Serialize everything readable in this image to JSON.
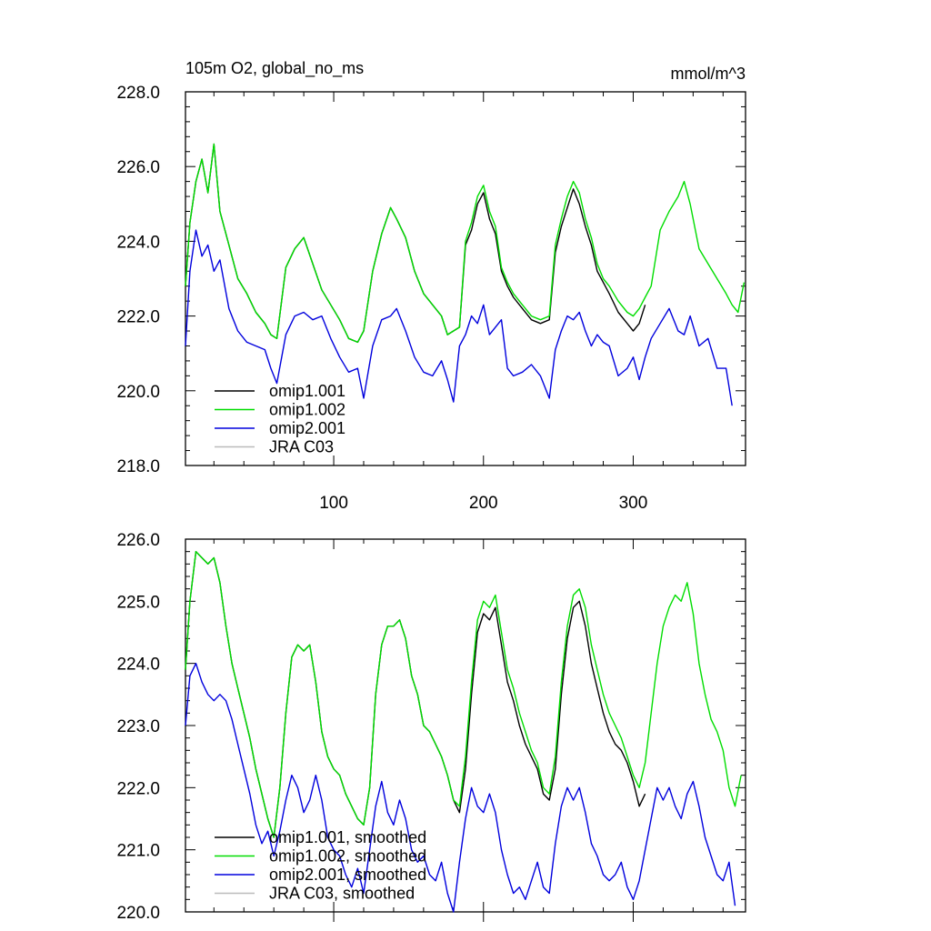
{
  "chart_data": [
    {
      "type": "line",
      "title_left": "105m O2, global_no_ms",
      "title_right": "mmol/m^3",
      "xlim": [
        1,
        375
      ],
      "ylim": [
        218,
        228
      ],
      "xticks": [
        100,
        200,
        300
      ],
      "xtick_labels": [
        "100",
        "200",
        "300"
      ],
      "yticks": [
        218,
        220,
        222,
        224,
        226,
        228
      ],
      "ytick_labels": [
        "218.0",
        "220.0",
        "222.0",
        "224.0",
        "226.0",
        "228.0"
      ],
      "grid": false,
      "legend_position": "bottom-left",
      "series": [
        {
          "name": "omip1.001",
          "color": "#000000",
          "x": [
            1,
            4,
            8,
            12,
            16,
            20,
            24,
            30,
            36,
            42,
            48,
            54,
            58,
            62,
            68,
            74,
            80,
            86,
            92,
            98,
            104,
            110,
            116,
            120,
            126,
            132,
            138,
            142,
            148,
            154,
            160,
            166,
            172,
            176,
            180,
            184,
            188,
            192,
            196,
            200,
            204,
            208,
            212,
            216,
            220,
            226,
            232,
            238,
            244,
            248,
            252,
            256,
            260,
            264,
            268,
            272,
            276,
            280,
            284,
            290,
            296,
            300,
            304,
            308
          ],
          "values": [
            222.8,
            224.5,
            225.6,
            226.2,
            225.3,
            226.6,
            224.8,
            223.9,
            223.0,
            222.6,
            222.1,
            221.8,
            221.5,
            221.4,
            223.3,
            223.8,
            224.1,
            223.4,
            222.7,
            222.3,
            221.9,
            221.4,
            221.3,
            221.6,
            223.2,
            224.2,
            224.9,
            224.6,
            224.1,
            223.2,
            222.6,
            222.3,
            222.0,
            221.5,
            221.6,
            221.7,
            223.9,
            224.3,
            225.0,
            225.3,
            224.6,
            224.2,
            223.2,
            222.8,
            222.5,
            222.2,
            221.9,
            221.8,
            221.9,
            223.7,
            224.4,
            224.9,
            225.4,
            225.0,
            224.4,
            223.9,
            223.2,
            222.9,
            222.6,
            222.1,
            221.8,
            221.6,
            221.8,
            222.3
          ]
        },
        {
          "name": "omip1.002",
          "color": "#00dd00",
          "x": [
            1,
            4,
            8,
            12,
            16,
            20,
            24,
            30,
            36,
            42,
            48,
            54,
            58,
            62,
            68,
            74,
            80,
            86,
            92,
            98,
            104,
            110,
            116,
            120,
            126,
            132,
            138,
            142,
            148,
            154,
            160,
            166,
            172,
            176,
            180,
            184,
            188,
            192,
            196,
            200,
            204,
            208,
            212,
            216,
            220,
            226,
            232,
            238,
            244,
            248,
            252,
            256,
            260,
            264,
            268,
            272,
            276,
            280,
            284,
            290,
            296,
            300,
            304,
            308,
            312,
            318,
            324,
            330,
            334,
            338,
            344,
            350,
            356,
            362,
            366,
            370,
            374
          ],
          "values": [
            222.8,
            224.5,
            225.6,
            226.2,
            225.3,
            226.6,
            224.8,
            223.9,
            223.0,
            222.6,
            222.1,
            221.8,
            221.5,
            221.4,
            223.3,
            223.8,
            224.1,
            223.4,
            222.7,
            222.3,
            221.9,
            221.4,
            221.3,
            221.6,
            223.2,
            224.2,
            224.9,
            224.6,
            224.1,
            223.2,
            222.6,
            222.3,
            222.0,
            221.5,
            221.6,
            221.7,
            224.0,
            224.5,
            225.2,
            225.5,
            224.8,
            224.4,
            223.3,
            222.9,
            222.6,
            222.3,
            222.0,
            221.9,
            222.0,
            223.9,
            224.6,
            225.2,
            225.6,
            225.3,
            224.6,
            224.1,
            223.4,
            223.0,
            222.8,
            222.4,
            222.1,
            222.0,
            222.2,
            222.5,
            222.8,
            224.3,
            224.8,
            225.2,
            225.6,
            225.0,
            223.8,
            223.4,
            223.0,
            222.6,
            222.3,
            222.1,
            222.9
          ]
        },
        {
          "name": "omip2.001",
          "color": "#0000dd",
          "x": [
            1,
            4,
            8,
            12,
            16,
            20,
            24,
            30,
            36,
            42,
            48,
            54,
            58,
            62,
            68,
            74,
            80,
            86,
            92,
            98,
            104,
            110,
            116,
            120,
            126,
            132,
            138,
            142,
            148,
            154,
            160,
            166,
            172,
            176,
            180,
            184,
            188,
            192,
            196,
            200,
            204,
            208,
            212,
            216,
            220,
            226,
            232,
            238,
            244,
            248,
            252,
            256,
            260,
            264,
            268,
            272,
            276,
            280,
            284,
            290,
            296,
            300,
            304,
            308,
            312,
            318,
            324,
            330,
            334,
            338,
            344,
            350,
            356,
            362,
            366
          ],
          "values": [
            221.2,
            223.2,
            224.3,
            223.6,
            223.9,
            223.2,
            223.5,
            222.2,
            221.6,
            221.3,
            221.2,
            221.1,
            220.6,
            220.2,
            221.5,
            222.0,
            222.1,
            221.9,
            222.0,
            221.4,
            220.9,
            220.5,
            220.6,
            219.8,
            221.2,
            221.9,
            222.0,
            222.2,
            221.6,
            220.9,
            220.5,
            220.4,
            220.8,
            220.3,
            219.7,
            221.2,
            221.5,
            222.0,
            221.8,
            222.3,
            221.5,
            221.7,
            221.9,
            220.6,
            220.4,
            220.5,
            220.7,
            220.4,
            219.8,
            221.1,
            221.6,
            222.0,
            221.9,
            222.1,
            221.6,
            221.2,
            221.5,
            221.3,
            221.2,
            220.4,
            220.6,
            220.9,
            220.3,
            220.9,
            221.4,
            221.8,
            222.2,
            221.6,
            221.5,
            222.0,
            221.2,
            221.4,
            220.6,
            220.6,
            219.6
          ]
        },
        {
          "name": "JRA C03",
          "color": "#bbbbbb",
          "x": [],
          "values": []
        }
      ]
    },
    {
      "type": "line",
      "xlim": [
        1,
        375
      ],
      "ylim": [
        220,
        226
      ],
      "yticks": [
        220,
        221,
        222,
        223,
        224,
        225,
        226
      ],
      "ytick_labels": [
        "220.0",
        "221.0",
        "222.0",
        "223.0",
        "224.0",
        "225.0",
        "226.0"
      ],
      "grid": false,
      "legend_position": "bottom-left",
      "series": [
        {
          "name": "omip1.001, smoothed",
          "color": "#000000",
          "x": [
            1,
            4,
            8,
            12,
            16,
            20,
            24,
            28,
            32,
            36,
            40,
            44,
            48,
            52,
            56,
            60,
            64,
            68,
            72,
            76,
            80,
            84,
            88,
            92,
            96,
            100,
            104,
            108,
            112,
            116,
            120,
            124,
            128,
            132,
            136,
            140,
            144,
            148,
            152,
            156,
            160,
            164,
            168,
            172,
            176,
            180,
            184,
            188,
            192,
            196,
            200,
            204,
            208,
            212,
            216,
            220,
            224,
            228,
            232,
            236,
            240,
            244,
            248,
            252,
            256,
            260,
            264,
            268,
            272,
            276,
            280,
            284,
            288,
            292,
            296,
            300,
            304,
            308
          ],
          "values": [
            223.9,
            225.0,
            225.8,
            225.7,
            225.6,
            225.7,
            225.3,
            224.6,
            224.0,
            223.6,
            223.2,
            222.8,
            222.3,
            221.9,
            221.5,
            221.2,
            222.0,
            223.2,
            224.1,
            224.3,
            224.2,
            224.3,
            223.7,
            222.9,
            222.5,
            222.3,
            222.2,
            221.9,
            221.7,
            221.5,
            221.4,
            222.0,
            223.5,
            224.3,
            224.6,
            224.6,
            224.7,
            224.4,
            223.8,
            223.5,
            223.0,
            222.9,
            222.7,
            222.5,
            222.2,
            221.8,
            221.6,
            222.3,
            223.5,
            224.5,
            224.8,
            224.7,
            224.9,
            224.3,
            223.7,
            223.4,
            223.0,
            222.7,
            222.5,
            222.3,
            221.9,
            221.8,
            222.3,
            223.5,
            224.4,
            224.9,
            225.0,
            224.6,
            224.0,
            223.6,
            223.2,
            222.9,
            222.7,
            222.6,
            222.4,
            222.1,
            221.7,
            221.9
          ]
        },
        {
          "name": "omip1.002, smoothed",
          "color": "#00dd00",
          "x": [
            1,
            4,
            8,
            12,
            16,
            20,
            24,
            28,
            32,
            36,
            40,
            44,
            48,
            52,
            56,
            60,
            64,
            68,
            72,
            76,
            80,
            84,
            88,
            92,
            96,
            100,
            104,
            108,
            112,
            116,
            120,
            124,
            128,
            132,
            136,
            140,
            144,
            148,
            152,
            156,
            160,
            164,
            168,
            172,
            176,
            180,
            184,
            188,
            192,
            196,
            200,
            204,
            208,
            212,
            216,
            220,
            224,
            228,
            232,
            236,
            240,
            244,
            248,
            252,
            256,
            260,
            264,
            268,
            272,
            276,
            280,
            284,
            288,
            292,
            296,
            300,
            304,
            308,
            312,
            316,
            320,
            324,
            328,
            332,
            336,
            340,
            344,
            348,
            352,
            356,
            360,
            364,
            368,
            372
          ],
          "values": [
            223.9,
            225.0,
            225.8,
            225.7,
            225.6,
            225.7,
            225.3,
            224.6,
            224.0,
            223.6,
            223.2,
            222.8,
            222.3,
            221.9,
            221.5,
            221.2,
            222.0,
            223.2,
            224.1,
            224.3,
            224.2,
            224.3,
            223.7,
            222.9,
            222.5,
            222.3,
            222.2,
            221.9,
            221.7,
            221.5,
            221.4,
            222.0,
            223.5,
            224.3,
            224.6,
            224.6,
            224.7,
            224.4,
            223.8,
            223.5,
            223.0,
            222.9,
            222.7,
            222.5,
            222.2,
            221.8,
            221.7,
            222.5,
            223.7,
            224.7,
            225.0,
            224.9,
            225.1,
            224.5,
            223.9,
            223.6,
            223.2,
            222.9,
            222.6,
            222.4,
            222.0,
            221.9,
            222.5,
            223.7,
            224.6,
            225.1,
            225.2,
            224.9,
            224.3,
            223.9,
            223.5,
            223.2,
            223.0,
            222.8,
            222.5,
            222.2,
            222.0,
            222.4,
            223.2,
            224.0,
            224.6,
            224.9,
            225.1,
            225.0,
            225.3,
            224.8,
            224.0,
            223.5,
            223.1,
            222.9,
            222.6,
            222.0,
            221.7,
            222.2
          ]
        },
        {
          "name": "omip2.001, smoothed",
          "color": "#0000dd",
          "x": [
            1,
            4,
            8,
            12,
            16,
            20,
            24,
            28,
            32,
            36,
            40,
            44,
            48,
            52,
            56,
            60,
            64,
            68,
            72,
            76,
            80,
            84,
            88,
            92,
            96,
            100,
            104,
            108,
            112,
            116,
            120,
            124,
            128,
            132,
            136,
            140,
            144,
            148,
            152,
            156,
            160,
            164,
            168,
            172,
            176,
            180,
            184,
            188,
            192,
            196,
            200,
            204,
            208,
            212,
            216,
            220,
            224,
            228,
            232,
            236,
            240,
            244,
            248,
            252,
            256,
            260,
            264,
            268,
            272,
            276,
            280,
            284,
            288,
            292,
            296,
            300,
            304,
            308,
            312,
            316,
            320,
            324,
            328,
            332,
            336,
            340,
            344,
            348,
            352,
            356,
            360,
            364,
            368
          ],
          "values": [
            223.0,
            223.8,
            224.0,
            223.7,
            223.5,
            223.4,
            223.5,
            223.4,
            223.1,
            222.7,
            222.3,
            221.9,
            221.4,
            221.1,
            221.3,
            220.9,
            221.3,
            221.8,
            222.2,
            222.0,
            221.6,
            221.8,
            222.2,
            221.8,
            221.2,
            221.0,
            220.9,
            220.6,
            220.4,
            220.7,
            220.3,
            221.0,
            221.7,
            222.1,
            221.6,
            221.4,
            221.8,
            221.5,
            221.0,
            220.8,
            220.9,
            220.6,
            220.5,
            220.8,
            220.3,
            220.0,
            220.8,
            221.5,
            222.0,
            221.7,
            221.6,
            221.9,
            221.6,
            221.0,
            220.6,
            220.3,
            220.4,
            220.2,
            220.5,
            220.8,
            220.4,
            220.3,
            221.1,
            221.7,
            222.0,
            221.8,
            222.0,
            221.6,
            221.1,
            220.9,
            220.6,
            220.5,
            220.6,
            220.8,
            220.4,
            220.2,
            220.5,
            221.0,
            221.5,
            222.0,
            221.8,
            222.0,
            221.7,
            221.5,
            221.9,
            222.1,
            221.7,
            221.2,
            220.9,
            220.6,
            220.5,
            220.8,
            220.1
          ]
        },
        {
          "name": "JRA C03, smoothed",
          "color": "#bbbbbb",
          "x": [],
          "values": []
        }
      ]
    }
  ]
}
